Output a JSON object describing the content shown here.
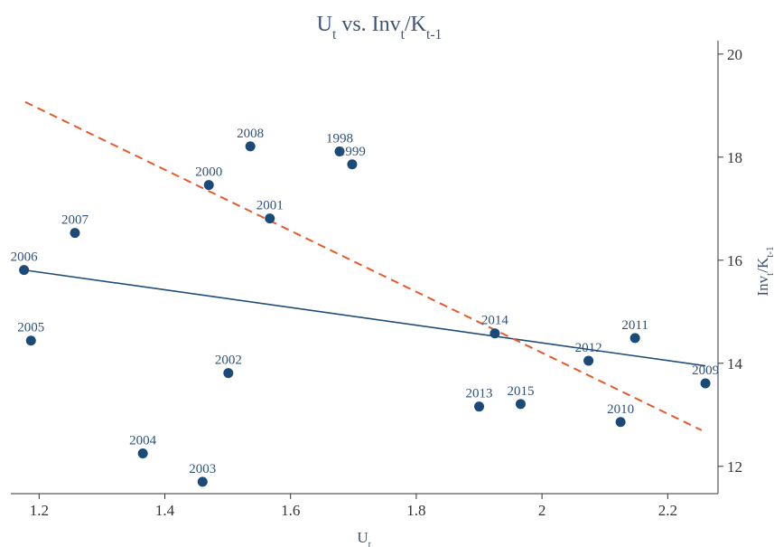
{
  "chart_data": {
    "type": "scatter",
    "title": [
      {
        "text": "U"
      },
      {
        "text": "t",
        "sub": true
      },
      {
        "text": " vs. Inv"
      },
      {
        "text": "t",
        "sub": true
      },
      {
        "text": "/K"
      },
      {
        "text": "t-1",
        "sub": true
      }
    ],
    "x_label": [
      {
        "text": "U"
      },
      {
        "text": "t",
        "sub": true
      }
    ],
    "y_label": [
      {
        "text": "Inv"
      },
      {
        "text": "t",
        "sub": true
      },
      {
        "text": "/K"
      },
      {
        "text": "t-1",
        "sub": true
      }
    ],
    "y_axis_side": "right",
    "labels": [
      "2006",
      "2005",
      "2007",
      "2004",
      "2003",
      "2000",
      "2002",
      "2008",
      "2001",
      "1998",
      "1999",
      "2013",
      "2014",
      "2015",
      "2012",
      "2010",
      "2011",
      "2009"
    ],
    "x": [
      1.176,
      1.187,
      1.257,
      1.365,
      1.46,
      1.47,
      1.501,
      1.536,
      1.567,
      1.678,
      1.698,
      1.9,
      1.925,
      1.966,
      2.074,
      2.125,
      2.148,
      2.26
    ],
    "values": [
      15.81,
      14.44,
      16.53,
      12.25,
      11.7,
      17.46,
      13.81,
      18.21,
      16.81,
      18.11,
      17.86,
      13.16,
      14.58,
      13.21,
      14.05,
      12.86,
      14.49,
      13.61
    ],
    "color": "#1b4a78",
    "fit_lines": [
      {
        "style": "solid",
        "color": "#1f4e79",
        "x": [
          1.176,
          2.26
        ],
        "values": [
          15.81,
          13.95
        ]
      },
      {
        "style": "dashed",
        "color": "#e8592a",
        "x": [
          1.178,
          2.254
        ],
        "values": [
          19.07,
          12.7
        ]
      }
    ],
    "xlim": [
      1.155,
      2.28
    ],
    "ylim": [
      11.47,
      20.26
    ],
    "xticks": [
      1.2,
      1.4,
      1.6,
      1.8,
      2,
      2.2
    ],
    "yticks": [
      12,
      14,
      16,
      18,
      20
    ]
  }
}
